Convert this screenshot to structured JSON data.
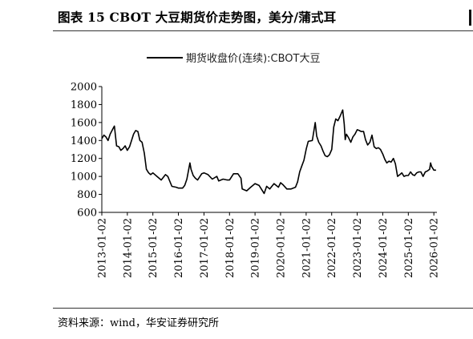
{
  "figure": {
    "title": "图表 15 CBOT 大豆期货价走势图，美分/蒲式耳",
    "source": "资料来源：wind，华安证券研究所"
  },
  "chart_data": {
    "type": "line",
    "title": "图表 15 CBOT 大豆期货价走势图，美分/蒲式耳",
    "unit": "美分/蒲式耳",
    "legend": {
      "position": "top-center",
      "entries": [
        "期货收盘价(连续):CBOT大豆"
      ]
    },
    "xlabel": "",
    "ylabel": "",
    "x_axis": {
      "type": "date",
      "range": [
        "2013-01-02",
        "2026-02-15"
      ],
      "tick_labels": [
        "2013-01-02",
        "2014-01-02",
        "2015-01-02",
        "2016-01-02",
        "2017-01-02",
        "2018-01-02",
        "2019-01-02",
        "2020-01-02",
        "2021-01-02",
        "2022-01-02",
        "2023-01-02",
        "2024-01-02",
        "2025-01-02",
        "2026-01-02"
      ]
    },
    "y_axis": {
      "range": [
        600,
        2000
      ],
      "tick_labels": [
        "600",
        "800",
        "1000",
        "1200",
        "1400",
        "1600",
        "1800",
        "2000"
      ]
    },
    "grid": false,
    "series": [
      {
        "name": "期货收盘价(连续):CBOT大豆",
        "color": "#000000",
        "x": [
          "2013-01-02",
          "2013-02-01",
          "2013-03-01",
          "2013-04-01",
          "2013-05-01",
          "2013-06-03",
          "2013-07-01",
          "2013-08-01",
          "2013-09-03",
          "2013-10-01",
          "2013-11-01",
          "2013-12-02",
          "2014-01-02",
          "2014-02-03",
          "2014-03-03",
          "2014-04-01",
          "2014-05-01",
          "2014-06-02",
          "2014-07-01",
          "2014-08-01",
          "2014-09-02",
          "2014-10-01",
          "2014-11-03",
          "2014-12-01",
          "2015-01-02",
          "2015-03-02",
          "2015-05-01",
          "2015-07-01",
          "2015-08-03",
          "2015-10-01",
          "2015-12-01",
          "2016-01-04",
          "2016-03-01",
          "2016-04-01",
          "2016-05-02",
          "2016-06-15",
          "2016-07-01",
          "2016-08-01",
          "2016-09-01",
          "2016-10-03",
          "2016-12-01",
          "2017-01-03",
          "2017-03-01",
          "2017-05-01",
          "2017-07-05",
          "2017-08-01",
          "2017-10-02",
          "2017-12-01",
          "2018-01-02",
          "2018-03-01",
          "2018-05-01",
          "2018-06-15",
          "2018-07-02",
          "2018-09-04",
          "2018-11-01",
          "2019-01-02",
          "2019-03-01",
          "2019-05-13",
          "2019-06-17",
          "2019-08-01",
          "2019-10-01",
          "2019-12-02",
          "2020-01-02",
          "2020-02-03",
          "2020-04-01",
          "2020-06-01",
          "2020-08-03",
          "2020-09-01",
          "2020-10-01",
          "2020-11-02",
          "2020-12-01",
          "2021-01-04",
          "2021-02-01",
          "2021-04-01",
          "2021-05-12",
          "2021-06-01",
          "2021-07-01",
          "2021-08-02",
          "2021-09-01",
          "2021-10-01",
          "2021-11-01",
          "2021-12-01",
          "2022-01-03",
          "2022-02-01",
          "2022-03-01",
          "2022-04-01",
          "2022-05-02",
          "2022-06-09",
          "2022-07-01",
          "2022-07-15",
          "2022-08-01",
          "2022-09-01",
          "2022-10-03",
          "2022-11-01",
          "2022-12-01",
          "2023-01-03",
          "2023-02-01",
          "2023-03-01",
          "2023-04-03",
          "2023-05-01",
          "2023-06-01",
          "2023-07-03",
          "2023-08-01",
          "2023-09-01",
          "2023-10-02",
          "2023-11-01",
          "2023-12-01",
          "2024-01-02",
          "2024-02-01",
          "2024-03-01",
          "2024-04-01",
          "2024-05-01",
          "2024-06-03",
          "2024-07-01",
          "2024-08-01",
          "2024-09-03",
          "2024-10-01",
          "2024-11-01",
          "2024-12-02",
          "2025-01-02",
          "2025-02-03",
          "2025-03-03",
          "2025-04-01",
          "2025-05-01",
          "2025-06-02",
          "2025-07-01",
          "2025-08-01",
          "2025-09-02",
          "2025-10-01",
          "2025-11-03",
          "2025-11-17",
          "2025-12-01",
          "2026-01-02",
          "2026-01-15",
          "2026-02-02"
        ],
        "y": [
          1420,
          1460,
          1440,
          1400,
          1470,
          1520,
          1560,
          1340,
          1330,
          1290,
          1310,
          1340,
          1290,
          1330,
          1400,
          1470,
          1510,
          1500,
          1400,
          1380,
          1260,
          1080,
          1040,
          1020,
          1040,
          1000,
          960,
          1020,
          1000,
          890,
          880,
          870,
          870,
          900,
          970,
          1150,
          1080,
          1010,
          980,
          960,
          1030,
          1040,
          1020,
          970,
          1000,
          950,
          970,
          960,
          960,
          1030,
          1030,
          980,
          860,
          840,
          880,
          920,
          900,
          810,
          890,
          860,
          920,
          880,
          930,
          910,
          860,
          860,
          880,
          940,
          1050,
          1120,
          1180,
          1310,
          1390,
          1400,
          1600,
          1450,
          1380,
          1340,
          1280,
          1230,
          1220,
          1240,
          1300,
          1550,
          1640,
          1620,
          1670,
          1740,
          1580,
          1410,
          1470,
          1430,
          1380,
          1440,
          1470,
          1520,
          1510,
          1500,
          1500,
          1410,
          1350,
          1380,
          1460,
          1330,
          1310,
          1320,
          1300,
          1250,
          1190,
          1150,
          1170,
          1160,
          1200,
          1140,
          1000,
          1020,
          1040,
          1000,
          1010,
          1010,
          1050,
          1020,
          1010,
          1040,
          1050,
          1050,
          1000,
          1050,
          1060,
          1080,
          1150,
          1110,
          1070,
          1070,
          1070
        ]
      }
    ]
  }
}
